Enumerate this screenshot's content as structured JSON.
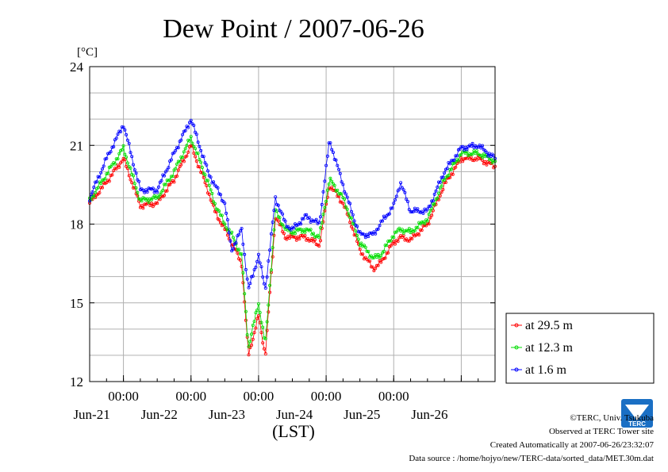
{
  "chart_data": {
    "type": "line",
    "title": "Dew Point / 2007-06-26",
    "ylabel": "[°C]",
    "xlabel": "(LST)",
    "ylim": [
      12,
      24
    ],
    "yticks": [
      12,
      15,
      18,
      21,
      24
    ],
    "x_unit": "days (2007-06-20 12:00 LST to 2007-06-27 00:00 LST)",
    "xlim": [
      0,
      6
    ],
    "x_tick_positions": [
      0.5,
      1.5,
      2.5,
      3.5,
      4.5,
      5.5
    ],
    "x_time_labels": [
      "00:00",
      "00:00",
      "00:00",
      "00:00",
      "00:00",
      ""
    ],
    "x_date_labels": [
      "Jun-21",
      "Jun-22",
      "Jun-23",
      "Jun-24",
      "Jun-25",
      "Jun-26"
    ],
    "grid": true,
    "legend_position": "right",
    "series": [
      {
        "name": "at 29.5 m",
        "color": "#ff0000",
        "x": [
          0.0,
          0.25,
          0.5,
          0.75,
          1.0,
          1.25,
          1.5,
          1.75,
          1.85,
          2.0,
          2.1,
          2.25,
          2.35,
          2.5,
          2.6,
          2.75,
          2.9,
          3.0,
          3.2,
          3.4,
          3.55,
          3.75,
          3.9,
          4.0,
          4.2,
          4.3,
          4.5,
          4.6,
          4.75,
          5.0,
          5.25,
          5.5,
          5.75,
          6.0
        ],
        "values": [
          18.8,
          19.6,
          20.5,
          18.7,
          18.8,
          19.7,
          21.0,
          19.3,
          18.5,
          17.8,
          17.3,
          16.5,
          13.0,
          14.5,
          13.0,
          18.3,
          17.5,
          17.5,
          17.5,
          17.2,
          19.5,
          18.8,
          17.8,
          17.0,
          16.3,
          16.5,
          17.3,
          17.5,
          17.4,
          18.0,
          19.5,
          20.5,
          20.5,
          20.2
        ]
      },
      {
        "name": "at 12.3 m",
        "color": "#00dd00",
        "x": [
          0.0,
          0.25,
          0.5,
          0.75,
          1.0,
          1.25,
          1.5,
          1.75,
          1.85,
          2.0,
          2.1,
          2.25,
          2.35,
          2.5,
          2.6,
          2.75,
          2.9,
          3.0,
          3.2,
          3.4,
          3.55,
          3.75,
          3.9,
          4.0,
          4.2,
          4.3,
          4.5,
          4.6,
          4.75,
          5.0,
          5.25,
          5.5,
          5.75,
          6.0
        ],
        "values": [
          18.9,
          19.9,
          20.9,
          18.9,
          19.0,
          20.0,
          21.3,
          19.6,
          18.8,
          18.0,
          17.6,
          16.8,
          13.3,
          15.0,
          13.4,
          18.5,
          17.8,
          17.7,
          17.8,
          17.5,
          19.7,
          19.0,
          18.0,
          17.3,
          16.7,
          16.8,
          17.6,
          17.8,
          17.7,
          18.2,
          19.7,
          20.7,
          20.7,
          20.4
        ]
      },
      {
        "name": "at 1.6 m",
        "color": "#0000ff",
        "x": [
          0.0,
          0.25,
          0.5,
          0.75,
          1.0,
          1.25,
          1.5,
          1.75,
          1.85,
          2.0,
          2.1,
          2.25,
          2.35,
          2.5,
          2.6,
          2.75,
          2.9,
          3.0,
          3.2,
          3.4,
          3.55,
          3.75,
          3.9,
          4.0,
          4.2,
          4.3,
          4.5,
          4.6,
          4.75,
          5.0,
          5.25,
          5.5,
          5.75,
          6.0
        ],
        "values": [
          19.0,
          20.5,
          21.8,
          19.3,
          19.3,
          20.7,
          22.0,
          20.0,
          19.5,
          18.8,
          17.0,
          17.8,
          15.5,
          16.8,
          15.5,
          19.0,
          18.0,
          17.8,
          18.3,
          18.0,
          21.2,
          19.5,
          18.3,
          17.6,
          17.6,
          18.0,
          18.7,
          19.6,
          18.5,
          18.5,
          20.0,
          20.9,
          21.0,
          20.5
        ]
      }
    ]
  },
  "credits": {
    "copyright": "©TERC, Univ. Tsukuba",
    "observed": "Observed at TERC Tower site",
    "created": "Created Automatically at 2007-06-26/23:32:07",
    "source": "Data source : /home/hojyo/new/TERC-data/sorted_data/MET.30m.dat"
  },
  "logo": {
    "text": "TERC",
    "color": "#1a6fc4"
  }
}
